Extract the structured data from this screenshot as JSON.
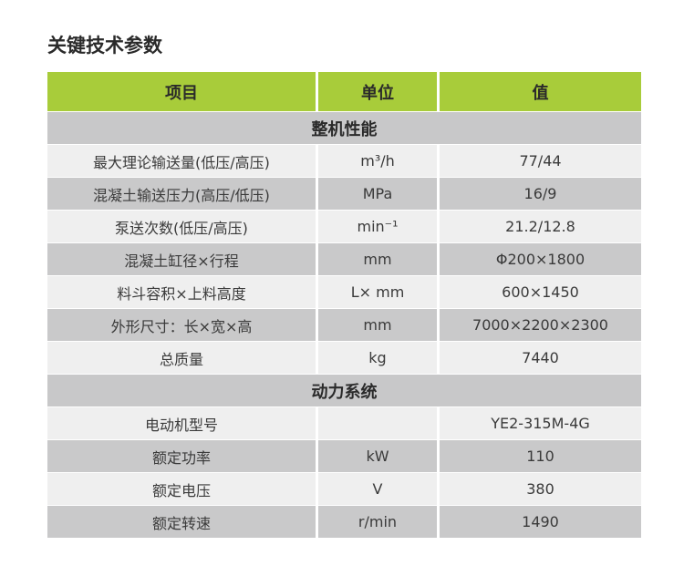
{
  "title": "关键技术参数",
  "columns": [
    "项目",
    "单位",
    "值"
  ],
  "colors": {
    "header": "#a8cc3a",
    "row_light": "#efefef",
    "row_dark": "#c9c9ca",
    "section": "#c8c8c9"
  },
  "sections": [
    {
      "name": "整机性能",
      "rows": [
        [
          "最大理论输送量(低压/高压)",
          "m³/h",
          "77/44"
        ],
        [
          "混凝土输送压力(高压/低压)",
          "MPa",
          "16/9"
        ],
        [
          "泵送次数(低压/高压)",
          "min⁻¹",
          "21.2/12.8"
        ],
        [
          "混凝土缸径×行程",
          "mm",
          "Φ200×1800"
        ],
        [
          "料斗容积×上料高度",
          "L× mm",
          "600×1450"
        ],
        [
          "外形尺寸：长×宽×高",
          "mm",
          "7000×2200×2300"
        ],
        [
          "总质量",
          "kg",
          "7440"
        ]
      ]
    },
    {
      "name": "动力系统",
      "rows": [
        [
          "电动机型号",
          "",
          "YE2-315M-4G"
        ],
        [
          "额定功率",
          "kW",
          "110"
        ],
        [
          "额定电压",
          "V",
          "380"
        ],
        [
          "额定转速",
          "r/min",
          "1490"
        ]
      ]
    }
  ]
}
